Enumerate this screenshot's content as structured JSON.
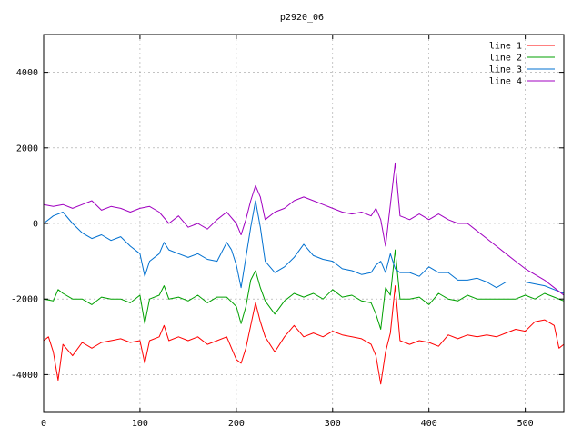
{
  "chart_data": {
    "type": "line",
    "title": "p2920_06",
    "xlabel": "",
    "ylabel": "",
    "xlim": [
      0,
      540
    ],
    "ylim": [
      -5000,
      5000
    ],
    "xticks": [
      0,
      100,
      200,
      300,
      400,
      500
    ],
    "yticks": [
      -4000,
      -2000,
      0,
      2000,
      4000
    ],
    "grid": true,
    "legend_position": "top-right",
    "series": [
      {
        "name": "line 1",
        "color": "#ff0000",
        "x": [
          0,
          5,
          10,
          15,
          20,
          30,
          40,
          50,
          60,
          70,
          80,
          90,
          100,
          105,
          110,
          120,
          125,
          130,
          140,
          150,
          160,
          170,
          180,
          190,
          195,
          200,
          205,
          210,
          215,
          220,
          225,
          230,
          240,
          250,
          260,
          270,
          280,
          290,
          300,
          310,
          320,
          330,
          340,
          345,
          350,
          355,
          360,
          365,
          370,
          380,
          390,
          400,
          410,
          420,
          430,
          440,
          450,
          460,
          470,
          480,
          490,
          500,
          510,
          520,
          530,
          535,
          540
        ],
        "y": [
          -3100,
          -3000,
          -3400,
          -4150,
          -3200,
          -3500,
          -3150,
          -3300,
          -3150,
          -3100,
          -3050,
          -3150,
          -3100,
          -3700,
          -3100,
          -3000,
          -2700,
          -3100,
          -3000,
          -3100,
          -3000,
          -3200,
          -3100,
          -3000,
          -3300,
          -3600,
          -3700,
          -3300,
          -2700,
          -2100,
          -2600,
          -3000,
          -3400,
          -3000,
          -2700,
          -3000,
          -2900,
          -3000,
          -2850,
          -2950,
          -3000,
          -3050,
          -3200,
          -3500,
          -4250,
          -3400,
          -2900,
          -1650,
          -3100,
          -3200,
          -3100,
          -3150,
          -3250,
          -2950,
          -3050,
          -2950,
          -3000,
          -2950,
          -3000,
          -2900,
          -2800,
          -2850,
          -2600,
          -2550,
          -2700,
          -3300,
          -3200
        ]
      },
      {
        "name": "line 2",
        "color": "#00a000",
        "x": [
          0,
          10,
          15,
          20,
          30,
          40,
          50,
          60,
          70,
          80,
          90,
          100,
          105,
          110,
          120,
          125,
          130,
          140,
          150,
          160,
          170,
          180,
          190,
          200,
          205,
          210,
          215,
          220,
          225,
          230,
          240,
          250,
          260,
          270,
          280,
          290,
          300,
          310,
          320,
          330,
          340,
          345,
          350,
          355,
          360,
          365,
          370,
          380,
          390,
          400,
          410,
          420,
          430,
          440,
          450,
          460,
          470,
          480,
          490,
          500,
          510,
          520,
          530,
          540
        ],
        "y": [
          -2000,
          -2050,
          -1750,
          -1850,
          -2000,
          -2000,
          -2150,
          -1950,
          -2000,
          -2000,
          -2100,
          -1900,
          -2650,
          -2000,
          -1900,
          -1650,
          -2000,
          -1950,
          -2050,
          -1900,
          -2100,
          -1950,
          -1950,
          -2200,
          -2650,
          -2200,
          -1500,
          -1250,
          -1700,
          -2050,
          -2400,
          -2050,
          -1850,
          -1950,
          -1850,
          -2000,
          -1750,
          -1950,
          -1900,
          -2050,
          -2100,
          -2400,
          -2800,
          -1700,
          -1900,
          -700,
          -2000,
          -2000,
          -1950,
          -2150,
          -1850,
          -2000,
          -2050,
          -1900,
          -2000,
          -2000,
          -2000,
          -2000,
          -2000,
          -1900,
          -2000,
          -1850,
          -1950,
          -2050
        ]
      },
      {
        "name": "line 3",
        "color": "#0070d0",
        "x": [
          0,
          10,
          20,
          30,
          40,
          50,
          60,
          70,
          80,
          90,
          100,
          105,
          110,
          120,
          125,
          130,
          140,
          150,
          160,
          170,
          180,
          190,
          195,
          200,
          205,
          210,
          215,
          220,
          225,
          230,
          240,
          250,
          260,
          270,
          280,
          290,
          300,
          310,
          320,
          330,
          340,
          345,
          350,
          355,
          360,
          365,
          370,
          380,
          390,
          400,
          410,
          420,
          430,
          440,
          450,
          460,
          470,
          480,
          490,
          500,
          510,
          520,
          530,
          540
        ],
        "y": [
          0,
          200,
          300,
          0,
          -250,
          -400,
          -300,
          -450,
          -350,
          -600,
          -800,
          -1400,
          -1000,
          -800,
          -500,
          -700,
          -800,
          -900,
          -800,
          -950,
          -1000,
          -500,
          -700,
          -1100,
          -1700,
          -900,
          -100,
          600,
          -100,
          -1000,
          -1300,
          -1150,
          -900,
          -550,
          -850,
          -950,
          -1000,
          -1200,
          -1250,
          -1350,
          -1300,
          -1100,
          -1000,
          -1300,
          -800,
          -1200,
          -1300,
          -1300,
          -1400,
          -1150,
          -1300,
          -1300,
          -1500,
          -1500,
          -1450,
          -1550,
          -1700,
          -1550,
          -1550,
          -1550,
          -1600,
          -1650,
          -1750,
          -1850
        ]
      },
      {
        "name": "line 4",
        "color": "#a000c0",
        "x": [
          0,
          10,
          20,
          30,
          40,
          50,
          60,
          70,
          80,
          90,
          100,
          110,
          120,
          130,
          140,
          150,
          160,
          170,
          180,
          190,
          200,
          205,
          210,
          215,
          220,
          225,
          230,
          240,
          250,
          260,
          270,
          280,
          290,
          300,
          310,
          320,
          330,
          340,
          345,
          350,
          355,
          360,
          365,
          370,
          380,
          390,
          400,
          410,
          420,
          430,
          440,
          450,
          460,
          470,
          480,
          490,
          500,
          510,
          520,
          530,
          540
        ],
        "y": [
          500,
          450,
          500,
          400,
          500,
          600,
          350,
          450,
          400,
          300,
          400,
          450,
          300,
          0,
          200,
          -100,
          0,
          -150,
          100,
          300,
          0,
          -300,
          100,
          600,
          1000,
          700,
          100,
          300,
          400,
          600,
          700,
          600,
          500,
          400,
          300,
          250,
          300,
          200,
          400,
          100,
          -600,
          500,
          1600,
          200,
          100,
          250,
          100,
          250,
          100,
          0,
          0,
          -200,
          -400,
          -600,
          -800,
          -1000,
          -1200,
          -1350,
          -1500,
          -1700,
          -1900
        ]
      }
    ]
  }
}
